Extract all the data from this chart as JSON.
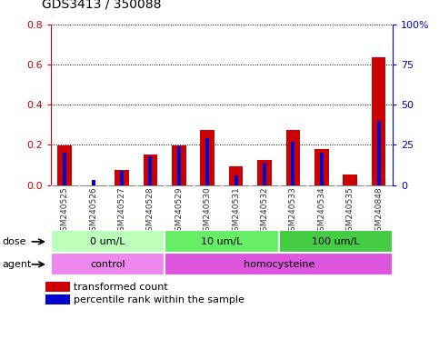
{
  "title": "GDS3413 / 350088",
  "samples": [
    "GSM240525",
    "GSM240526",
    "GSM240527",
    "GSM240528",
    "GSM240529",
    "GSM240530",
    "GSM240531",
    "GSM240532",
    "GSM240533",
    "GSM240534",
    "GSM240535",
    "GSM240848"
  ],
  "red_values": [
    0.195,
    0.0,
    0.075,
    0.15,
    0.195,
    0.275,
    0.095,
    0.125,
    0.275,
    0.18,
    0.05,
    0.635
  ],
  "blue_values_pct": [
    20,
    3,
    9,
    18,
    24,
    29,
    6,
    14,
    27,
    20,
    0,
    40
  ],
  "left_ylim": [
    0,
    0.8
  ],
  "right_ylim": [
    0,
    100
  ],
  "left_yticks": [
    0,
    0.2,
    0.4,
    0.6,
    0.8
  ],
  "right_yticks": [
    0,
    25,
    50,
    75,
    100
  ],
  "right_yticklabels": [
    "0",
    "25",
    "50",
    "75",
    "100%"
  ],
  "left_ycolor": "#cc0000",
  "right_ycolor": "#0000cc",
  "dose_groups": [
    {
      "label": "0 um/L",
      "start": 0,
      "end": 3,
      "color": "#bbffbb"
    },
    {
      "label": "10 um/L",
      "start": 4,
      "end": 7,
      "color": "#66ee66"
    },
    {
      "label": "100 um/L",
      "start": 8,
      "end": 11,
      "color": "#44cc44"
    }
  ],
  "agent_groups": [
    {
      "label": "control",
      "start": 0,
      "end": 3,
      "color": "#ee88ee"
    },
    {
      "label": "homocysteine",
      "start": 4,
      "end": 11,
      "color": "#dd55dd"
    }
  ],
  "dose_label": "dose",
  "agent_label": "agent",
  "legend_red": "transformed count",
  "legend_blue": "percentile rank within the sample",
  "red_color": "#cc0000",
  "blue_color": "#0000cc",
  "xtick_bg_color": "#cccccc",
  "plot_bg_color": "#ffffff"
}
